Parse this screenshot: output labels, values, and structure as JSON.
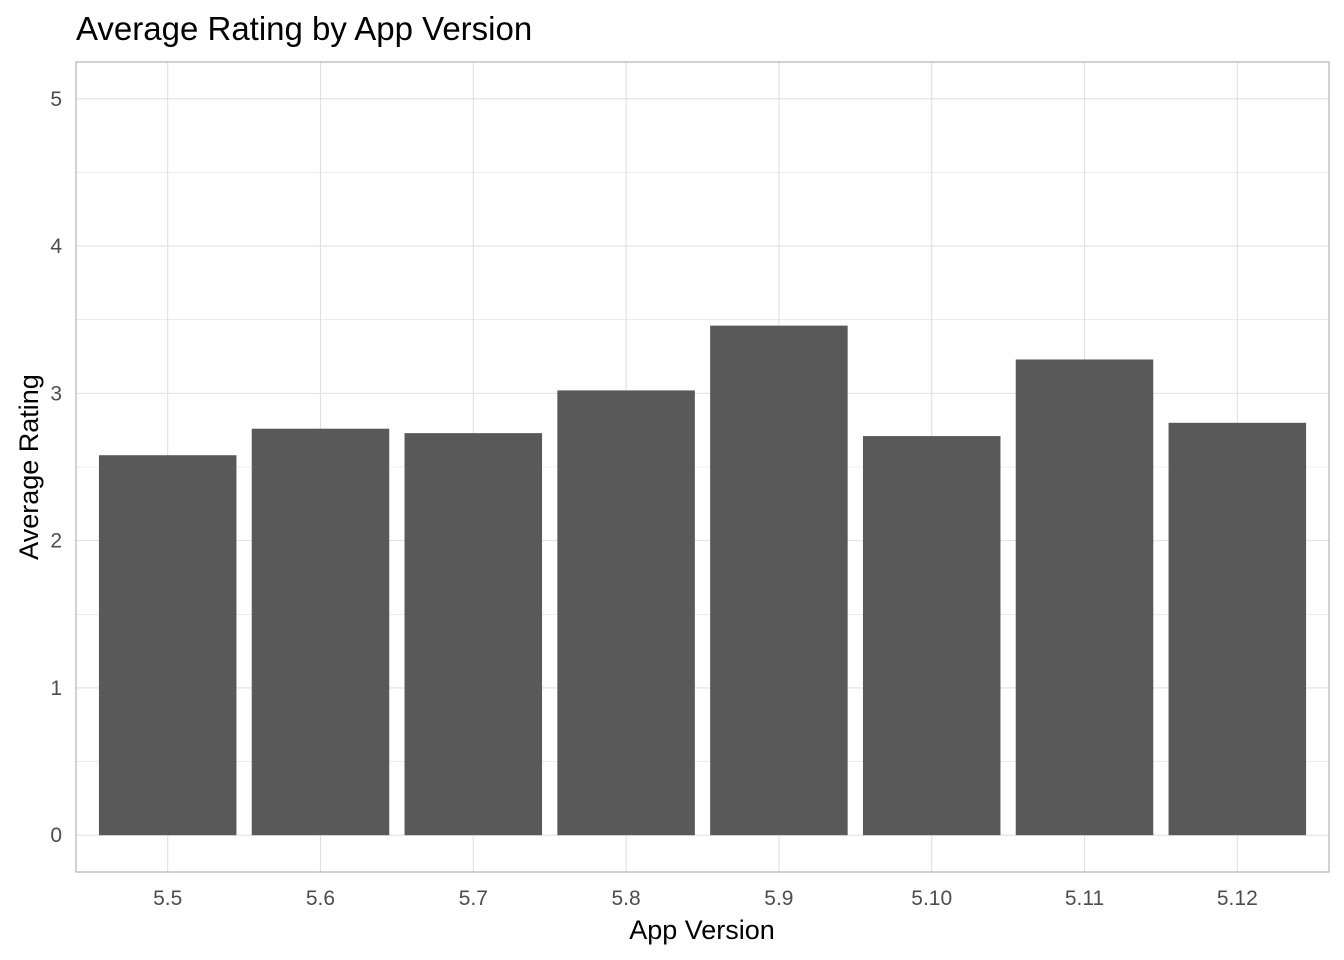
{
  "chart_data": {
    "type": "bar",
    "title": "Average Rating by App Version",
    "xlabel": "App Version",
    "ylabel": "Average Rating",
    "categories": [
      "5.5",
      "5.6",
      "5.7",
      "5.8",
      "5.9",
      "5.10",
      "5.11",
      "5.12"
    ],
    "values": [
      2.58,
      2.76,
      2.73,
      3.02,
      3.46,
      2.71,
      3.23,
      2.8
    ],
    "ylim": [
      -0.25,
      5.25
    ],
    "yticks": [
      0,
      1,
      2,
      3,
      4,
      5
    ],
    "ytick_labels": [
      "0",
      "1",
      "2",
      "3",
      "4",
      "5"
    ],
    "grid": true,
    "legend": "none",
    "colors": {
      "bar": "#595959",
      "grid": "#e0e0e0",
      "panel_border": "#b3b3b3",
      "tick_label": "#4d4d4d"
    }
  }
}
